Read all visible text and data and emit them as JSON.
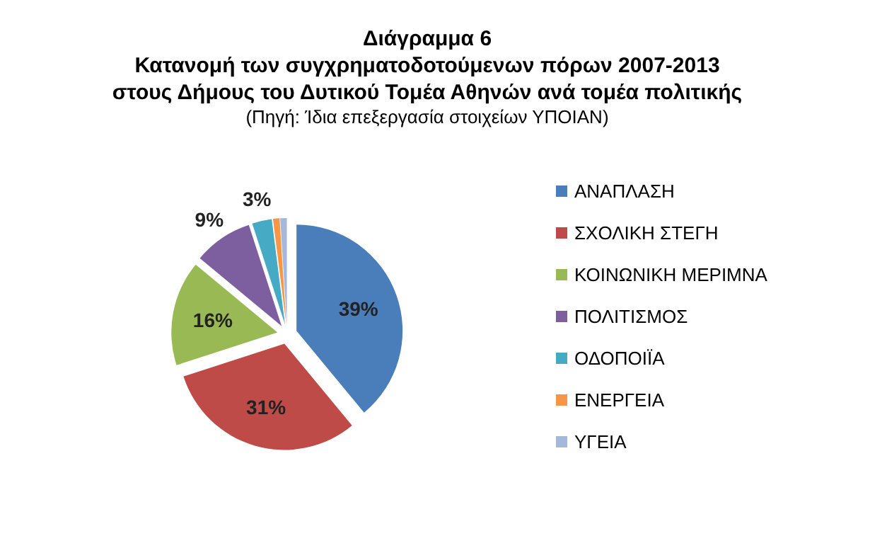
{
  "chart_data": {
    "type": "pie",
    "title": "Διάγραμμα 6\nΚατανομή των συγχρηματοδοτούμενων πόρων 2007-2013\nστους Δήμους του Δυτικού Τομέα Αθηνών ανά τομέα πολιτικής",
    "annotations": [
      "(Πηγή: Ίδια επεξεργασία στοιχείων ΥΠΟΙΑΝ)"
    ],
    "categories": [
      "ΑΝΑΠΛΑΣΗ",
      "ΣΧΟΛΙΚΗ ΣΤΕΓΗ",
      "ΚΟΙΝΩΝΙΚΗ ΜΕΡΙΜΝΑ",
      "ΠΟΛΙΤΙΣΜΟΣ",
      "ΟΔΟΠΟΙΪΑ",
      "ΕΝΕΡΓΕΙΑ",
      "ΥΓΕΙΑ"
    ],
    "values": [
      39,
      31,
      16,
      9,
      3,
      1,
      1
    ],
    "value_labels": [
      "39%",
      "31%",
      "16%",
      "9%",
      "3%",
      null,
      null
    ],
    "colors": [
      "#4a7ebb",
      "#be4b48",
      "#98b954",
      "#7d5fa0",
      "#46aac5",
      "#f79646",
      "#a5b8db"
    ],
    "legend": "right"
  }
}
